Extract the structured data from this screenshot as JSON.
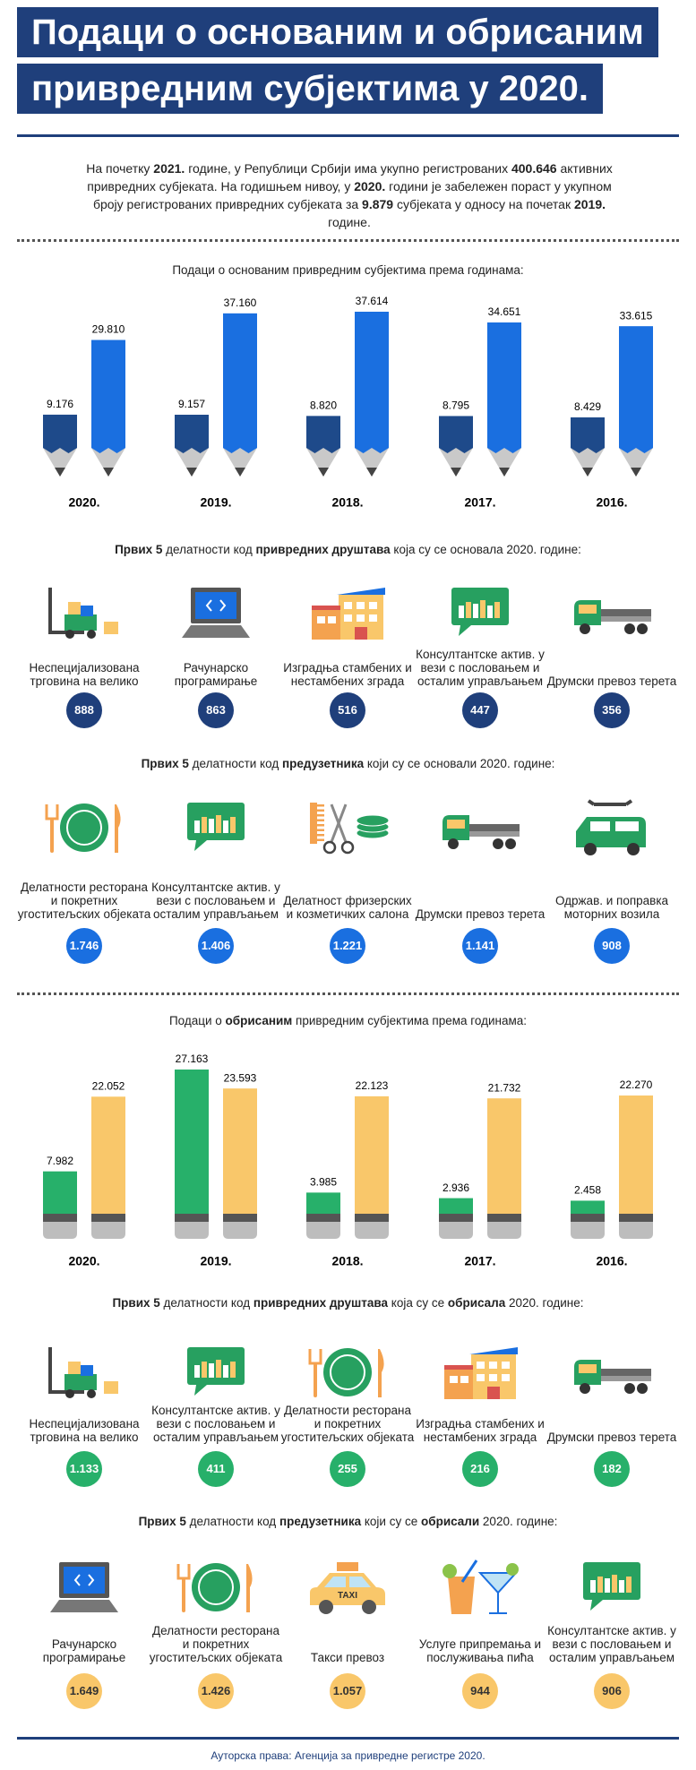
{
  "header": {
    "title": [
      "Подаци о основаним и обрисаним",
      "привредним субјектима у 2020."
    ]
  },
  "intro": [
    "На почетку ",
    "2021.",
    " године, у Републици Србији има укупно регистрованих ",
    "400.646",
    " активних привредних субјеката. На годишњем нивоу, у ",
    "2020.",
    " години је забележен пораст у укупном броју регистрованих привредних субјеката за ",
    "9.879",
    " субјеката у односу на почетак ",
    "2019.",
    " године."
  ],
  "chart_data": [
    {
      "type": "bar",
      "title": [
        "Подаци о основаним привредним субјектима према годинама:"
      ],
      "categories": [
        "2020.",
        "2019.",
        "2018.",
        "2017.",
        "2016."
      ],
      "series": [
        {
          "color": "#1e4a8a",
          "values": [
            9176,
            9157,
            8820,
            8795,
            8429
          ],
          "value_labels": [
            "9.176",
            "9.157",
            "8.820",
            "8.795",
            "8.429"
          ]
        },
        {
          "color": "#1a6fe0",
          "values": [
            29810,
            37160,
            37614,
            34651,
            33615
          ],
          "value_labels": [
            "29.810",
            "37.160",
            "37.614",
            "34.651",
            "33.615"
          ]
        }
      ]
    },
    {
      "type": "bar",
      "title": [
        "Подаци о ",
        "обрисаним",
        " привредним субјектима према годинама:"
      ],
      "categories": [
        "2020.",
        "2019.",
        "2018.",
        "2017.",
        "2016."
      ],
      "series": [
        {
          "color": "#27b06a",
          "values": [
            7982,
            27163,
            3985,
            2936,
            2458
          ],
          "value_labels": [
            "7.982",
            "27.163",
            "3.985",
            "2.936",
            "2.458"
          ]
        },
        {
          "color": "#f9c76a",
          "values": [
            22052,
            23593,
            22123,
            21732,
            22270
          ],
          "value_labels": [
            "22.052",
            "23.593",
            "22.123",
            "21.732",
            "22.270"
          ]
        }
      ]
    }
  ],
  "sections": [
    {
      "heading": [
        "Првих 5",
        " делатности код ",
        "привредних друштава",
        " која су се основала 2020. године:"
      ],
      "items": [
        {
          "label": "Неспецијализована трговина на велико",
          "value": "888"
        },
        {
          "label": "Рачунарско програмирање",
          "value": "863"
        },
        {
          "label": "Изградња стамбених и нестамбених зграда",
          "value": "516"
        },
        {
          "label": "Консултантске актив. у вези с пословањем и осталим управљањем",
          "value": "447"
        },
        {
          "label": "Друмски превоз терета",
          "value": "356"
        }
      ]
    },
    {
      "heading": [
        "Првих 5",
        " делатности код ",
        "предузетника",
        " који су се основали 2020. године:"
      ],
      "items": [
        {
          "label": "Делатности ресторана и покретних угоститељских објеката",
          "value": "1.746"
        },
        {
          "label": "Консултантске актив. у вези с пословањем и осталим управљањем",
          "value": "1.406"
        },
        {
          "label": "Делатност фризерских и козметичких салона",
          "value": "1.221"
        },
        {
          "label": "Друмски превоз терета",
          "value": "1.141"
        },
        {
          "label": "Одржав. и поправка моторних возила",
          "value": "908"
        }
      ]
    },
    {
      "heading": [
        "Првих 5",
        " делатности код ",
        "привредних друштава",
        " која су се ",
        "обрисала",
        " 2020. године:"
      ],
      "items": [
        {
          "label": "Неспецијализована трговина на велико",
          "value": "1.133"
        },
        {
          "label": "Консултантске актив. у вези с пословањем и осталим управљањем",
          "value": "411"
        },
        {
          "label": "Делатности ресторана и покретних угоститељских објеката",
          "value": "255"
        },
        {
          "label": "Изградња стамбених и нестамбених зграда",
          "value": "216"
        },
        {
          "label": "Друмски превоз терета",
          "value": "182"
        }
      ]
    },
    {
      "heading": [
        "Првих 5",
        " делатности код ",
        "предузетника",
        " који су се ",
        "обрисали",
        " 2020. године:"
      ],
      "items": [
        {
          "label": "Рачунарско програмирање",
          "value": "1.649"
        },
        {
          "label": "Делатности ресторана и покретних угоститељских објеката",
          "value": "1.426"
        },
        {
          "label": "Такси превоз",
          "value": "1.057",
          "icon_text": "TAXI"
        },
        {
          "label": "Услуге припремања и послуживања пића",
          "value": "944"
        },
        {
          "label": "Консултантске актив. у вези с пословањем и осталим управљањем",
          "value": "906"
        }
      ]
    }
  ],
  "footer": "Ауторска права: Агенција за привредне регистре 2020."
}
